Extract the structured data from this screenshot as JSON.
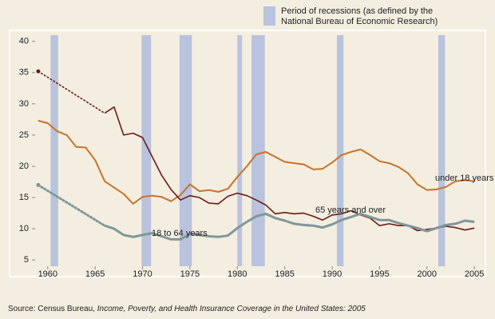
{
  "chart_data": {
    "type": "line",
    "legend_text": [
      "Period of recessions (as defined by the",
      "National Bureau of Economic Research)"
    ],
    "recession_color": "#b9c3de",
    "recessions": [
      [
        1960.3,
        1961.1
      ],
      [
        1969.9,
        1970.9
      ],
      [
        1973.9,
        1975.2
      ],
      [
        1980.0,
        1980.5
      ],
      [
        1981.5,
        1982.9
      ],
      [
        1990.5,
        1991.2
      ],
      [
        2001.2,
        2001.9
      ]
    ],
    "x": [
      1959,
      1960,
      1961,
      1962,
      1963,
      1964,
      1965,
      1966,
      1967,
      1968,
      1969,
      1970,
      1971,
      1972,
      1973,
      1974,
      1975,
      1976,
      1977,
      1978,
      1979,
      1980,
      1981,
      1982,
      1983,
      1984,
      1985,
      1986,
      1987,
      1988,
      1989,
      1990,
      1991,
      1992,
      1993,
      1994,
      1995,
      1996,
      1997,
      1998,
      1999,
      2000,
      2001,
      2002,
      2003,
      2004,
      2005
    ],
    "series": [
      {
        "name": "under 18 years",
        "color": "#c8722b",
        "width": 2,
        "gap_style": "dotted",
        "values": [
          27.3,
          26.9,
          25.6,
          25.0,
          23.1,
          23.0,
          21.0,
          17.6,
          16.6,
          15.6,
          14.0,
          15.1,
          15.3,
          15.1,
          14.4,
          15.4,
          17.1,
          16.0,
          16.2,
          15.9,
          16.4,
          18.3,
          20.0,
          21.9,
          22.3,
          21.5,
          20.7,
          20.5,
          20.3,
          19.5,
          19.6,
          20.6,
          21.8,
          22.3,
          22.7,
          21.8,
          20.8,
          20.5,
          19.9,
          18.9,
          17.1,
          16.2,
          16.3,
          16.7,
          17.6,
          17.8,
          17.6
        ]
      },
      {
        "name": "65 years and over",
        "color": "#6b1a1a",
        "width": 1.6,
        "gap_style": "dotted",
        "values": [
          35.2,
          null,
          null,
          null,
          null,
          null,
          null,
          28.5,
          29.5,
          25.0,
          25.3,
          24.6,
          21.6,
          18.6,
          16.3,
          14.6,
          15.3,
          15.0,
          14.1,
          14.0,
          15.2,
          15.7,
          15.3,
          14.6,
          13.8,
          12.4,
          12.6,
          12.4,
          12.5,
          12.0,
          11.4,
          12.2,
          12.4,
          12.9,
          12.2,
          11.7,
          10.5,
          10.8,
          10.5,
          10.5,
          9.7,
          9.9,
          10.1,
          10.4,
          10.2,
          9.8,
          10.1
        ]
      },
      {
        "name": "18 to 64 years",
        "color": "#7f9799",
        "width": 3,
        "gap_style": "dotted",
        "values": [
          17.0,
          null,
          null,
          null,
          null,
          null,
          null,
          10.5,
          10.0,
          9.0,
          8.7,
          9.0,
          9.3,
          8.8,
          8.3,
          8.3,
          9.2,
          9.0,
          8.8,
          8.7,
          8.9,
          10.1,
          11.1,
          12.0,
          12.4,
          11.7,
          11.3,
          10.8,
          10.6,
          10.5,
          10.2,
          10.7,
          11.4,
          11.9,
          12.4,
          11.9,
          11.4,
          11.4,
          10.9,
          10.5,
          10.1,
          9.6,
          10.1,
          10.6,
          10.8,
          11.3,
          11.1
        ]
      }
    ],
    "label_positions": [
      "right",
      "middle",
      "left"
    ],
    "xlim": [
      1958.5,
      2006
    ],
    "xticks": [
      1960,
      1965,
      1970,
      1975,
      1980,
      1985,
      1990,
      1995,
      2000,
      2005
    ],
    "ylim": [
      4,
      41.5
    ],
    "yticks": [
      5,
      10,
      15,
      20,
      25,
      30,
      35,
      40
    ],
    "source_prefix": "Source: Census Bureau, ",
    "source_title": "Income, Poverty, and Health Insurance Coverage in the United States: 2005"
  }
}
